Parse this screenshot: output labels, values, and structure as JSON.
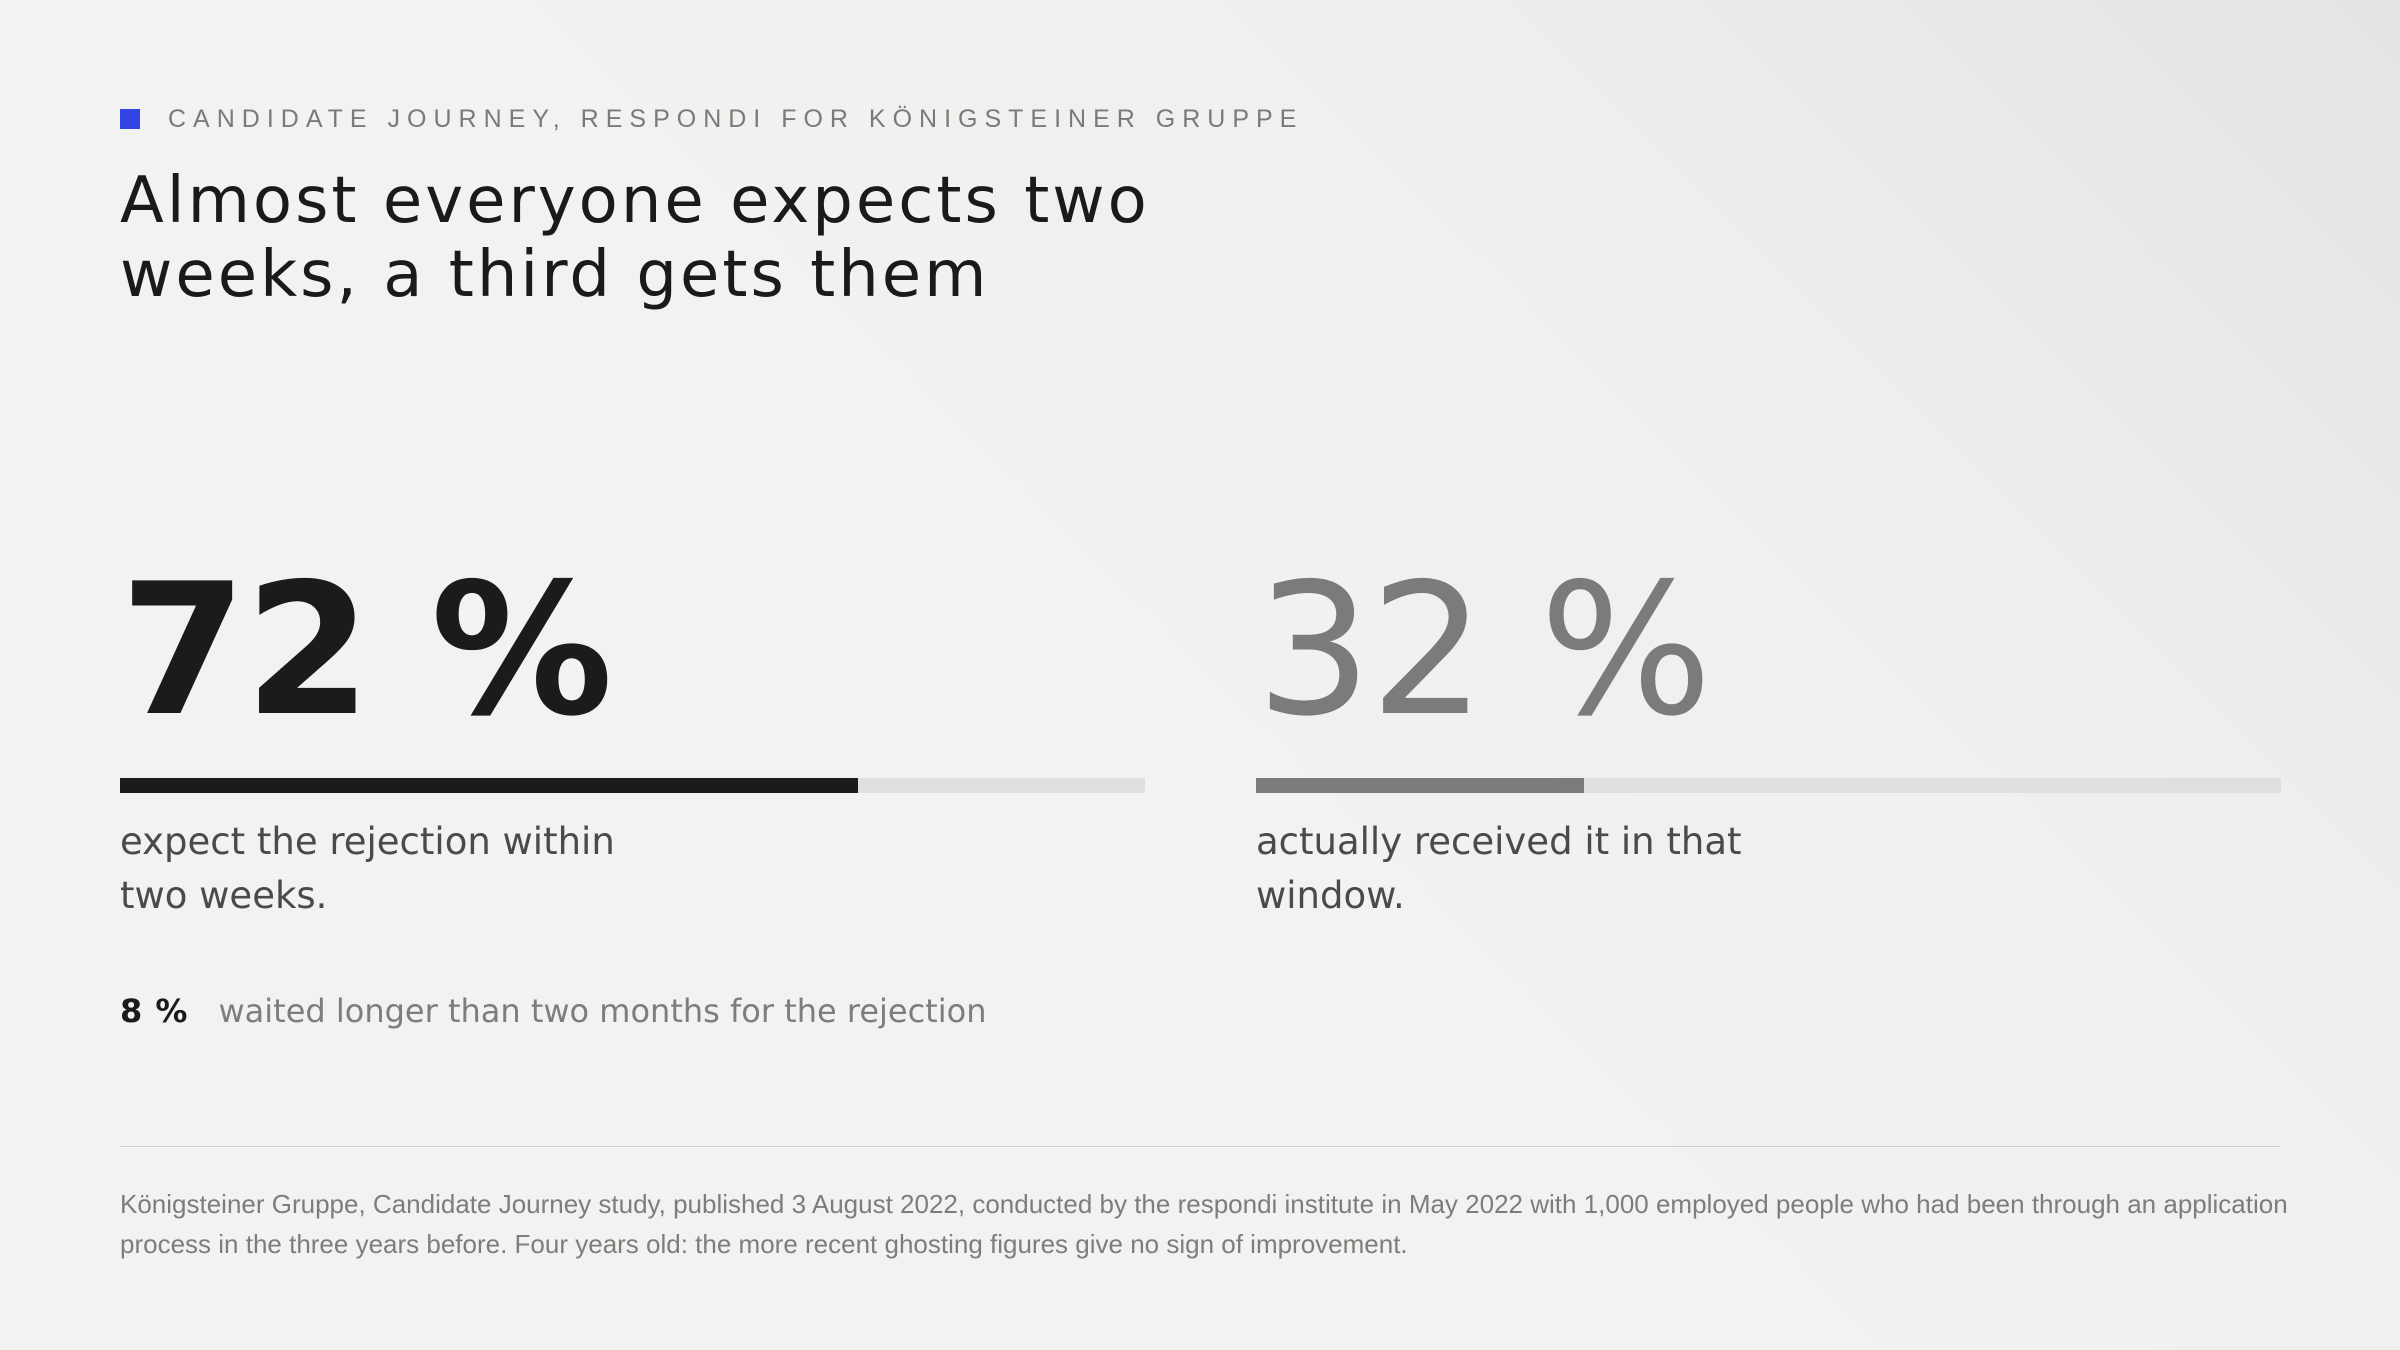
{
  "eyebrow": {
    "label": "CANDIDATE JOURNEY, RESPONDI FOR KÖNIGSTEINER GRUPPE",
    "accent_color": "#3344e6"
  },
  "headline": "Almost everyone expects two weeks, a third gets them",
  "stats": [
    {
      "value_label": "72 %",
      "value": 72,
      "caption": "expect the rejection within two weeks.",
      "color": "#1b1b1b"
    },
    {
      "value_label": "32 %",
      "value": 32,
      "caption": "actually received it in that window.",
      "color": "#7b7b7a"
    }
  ],
  "secondary_stat": {
    "value_label": "8 %",
    "text": "waited longer than two months for the rejection"
  },
  "source": "Königsteiner Gruppe, Candidate Journey study, published 3 August 2022, conducted by the respondi institute in May 2022 with 1,000 employed people who had been through an application process in the three years before. Four years old: the more recent ghosting figures give no sign of improvement."
}
